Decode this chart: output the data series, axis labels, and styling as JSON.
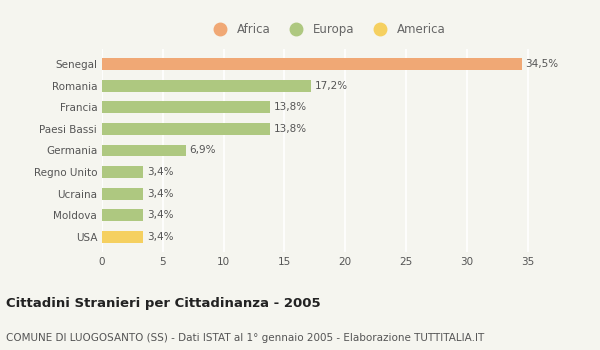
{
  "categories": [
    "Senegal",
    "Romania",
    "Francia",
    "Paesi Bassi",
    "Germania",
    "Regno Unito",
    "Ucraina",
    "Moldova",
    "USA"
  ],
  "values": [
    34.5,
    17.2,
    13.8,
    13.8,
    6.9,
    3.4,
    3.4,
    3.4,
    3.4
  ],
  "labels": [
    "34,5%",
    "17,2%",
    "13,8%",
    "13,8%",
    "6,9%",
    "3,4%",
    "3,4%",
    "3,4%",
    "3,4%"
  ],
  "colors": [
    "#f0a875",
    "#aec880",
    "#aec880",
    "#aec880",
    "#aec880",
    "#aec880",
    "#aec880",
    "#aec880",
    "#f5d060"
  ],
  "legend": [
    {
      "label": "Africa",
      "color": "#f0a875"
    },
    {
      "label": "Europa",
      "color": "#aec880"
    },
    {
      "label": "America",
      "color": "#f5d060"
    }
  ],
  "xlim": [
    0,
    37
  ],
  "xticks": [
    0,
    5,
    10,
    15,
    20,
    25,
    30,
    35
  ],
  "title": "Cittadini Stranieri per Cittadinanza - 2005",
  "subtitle": "COMUNE DI LUOGOSANTO (SS) - Dati ISTAT al 1° gennaio 2005 - Elaborazione TUTTITALIA.IT",
  "background_color": "#f5f5ef",
  "grid_color": "#ffffff",
  "bar_height": 0.55,
  "title_fontsize": 9.5,
  "subtitle_fontsize": 7.5,
  "label_fontsize": 7.5,
  "tick_fontsize": 7.5,
  "legend_fontsize": 8.5
}
